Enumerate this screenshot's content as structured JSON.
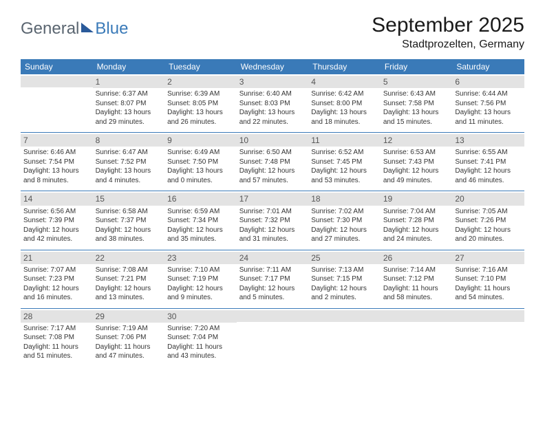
{
  "colors": {
    "header_bg": "#3a7ab8",
    "header_text": "#ffffff",
    "daynum_bg": "#e3e3e3",
    "daynum_text": "#555555",
    "cell_text": "#333333",
    "divider": "#3a7ab8",
    "logo_gray": "#5a6570",
    "logo_blue": "#3a7ab8",
    "logo_tri": "#2a5a9a",
    "page_bg": "#ffffff"
  },
  "logo": {
    "part1": "General",
    "part2": "Blue"
  },
  "title": "September 2025",
  "subtitle": "Stadtprozelten, Germany",
  "weekdays": [
    "Sunday",
    "Monday",
    "Tuesday",
    "Wednesday",
    "Thursday",
    "Friday",
    "Saturday"
  ],
  "font": {
    "family": "Arial",
    "title_size": 30,
    "subtitle_size": 16,
    "th_size": 12,
    "cell_size": 10,
    "daynum_size": 12
  },
  "weeks": [
    [
      null,
      {
        "n": "1",
        "sunrise": "Sunrise: 6:37 AM",
        "sunset": "Sunset: 8:07 PM",
        "daylight": "Daylight: 13 hours and 29 minutes."
      },
      {
        "n": "2",
        "sunrise": "Sunrise: 6:39 AM",
        "sunset": "Sunset: 8:05 PM",
        "daylight": "Daylight: 13 hours and 26 minutes."
      },
      {
        "n": "3",
        "sunrise": "Sunrise: 6:40 AM",
        "sunset": "Sunset: 8:03 PM",
        "daylight": "Daylight: 13 hours and 22 minutes."
      },
      {
        "n": "4",
        "sunrise": "Sunrise: 6:42 AM",
        "sunset": "Sunset: 8:00 PM",
        "daylight": "Daylight: 13 hours and 18 minutes."
      },
      {
        "n": "5",
        "sunrise": "Sunrise: 6:43 AM",
        "sunset": "Sunset: 7:58 PM",
        "daylight": "Daylight: 13 hours and 15 minutes."
      },
      {
        "n": "6",
        "sunrise": "Sunrise: 6:44 AM",
        "sunset": "Sunset: 7:56 PM",
        "daylight": "Daylight: 13 hours and 11 minutes."
      }
    ],
    [
      {
        "n": "7",
        "sunrise": "Sunrise: 6:46 AM",
        "sunset": "Sunset: 7:54 PM",
        "daylight": "Daylight: 13 hours and 8 minutes."
      },
      {
        "n": "8",
        "sunrise": "Sunrise: 6:47 AM",
        "sunset": "Sunset: 7:52 PM",
        "daylight": "Daylight: 13 hours and 4 minutes."
      },
      {
        "n": "9",
        "sunrise": "Sunrise: 6:49 AM",
        "sunset": "Sunset: 7:50 PM",
        "daylight": "Daylight: 13 hours and 0 minutes."
      },
      {
        "n": "10",
        "sunrise": "Sunrise: 6:50 AM",
        "sunset": "Sunset: 7:48 PM",
        "daylight": "Daylight: 12 hours and 57 minutes."
      },
      {
        "n": "11",
        "sunrise": "Sunrise: 6:52 AM",
        "sunset": "Sunset: 7:45 PM",
        "daylight": "Daylight: 12 hours and 53 minutes."
      },
      {
        "n": "12",
        "sunrise": "Sunrise: 6:53 AM",
        "sunset": "Sunset: 7:43 PM",
        "daylight": "Daylight: 12 hours and 49 minutes."
      },
      {
        "n": "13",
        "sunrise": "Sunrise: 6:55 AM",
        "sunset": "Sunset: 7:41 PM",
        "daylight": "Daylight: 12 hours and 46 minutes."
      }
    ],
    [
      {
        "n": "14",
        "sunrise": "Sunrise: 6:56 AM",
        "sunset": "Sunset: 7:39 PM",
        "daylight": "Daylight: 12 hours and 42 minutes."
      },
      {
        "n": "15",
        "sunrise": "Sunrise: 6:58 AM",
        "sunset": "Sunset: 7:37 PM",
        "daylight": "Daylight: 12 hours and 38 minutes."
      },
      {
        "n": "16",
        "sunrise": "Sunrise: 6:59 AM",
        "sunset": "Sunset: 7:34 PM",
        "daylight": "Daylight: 12 hours and 35 minutes."
      },
      {
        "n": "17",
        "sunrise": "Sunrise: 7:01 AM",
        "sunset": "Sunset: 7:32 PM",
        "daylight": "Daylight: 12 hours and 31 minutes."
      },
      {
        "n": "18",
        "sunrise": "Sunrise: 7:02 AM",
        "sunset": "Sunset: 7:30 PM",
        "daylight": "Daylight: 12 hours and 27 minutes."
      },
      {
        "n": "19",
        "sunrise": "Sunrise: 7:04 AM",
        "sunset": "Sunset: 7:28 PM",
        "daylight": "Daylight: 12 hours and 24 minutes."
      },
      {
        "n": "20",
        "sunrise": "Sunrise: 7:05 AM",
        "sunset": "Sunset: 7:26 PM",
        "daylight": "Daylight: 12 hours and 20 minutes."
      }
    ],
    [
      {
        "n": "21",
        "sunrise": "Sunrise: 7:07 AM",
        "sunset": "Sunset: 7:23 PM",
        "daylight": "Daylight: 12 hours and 16 minutes."
      },
      {
        "n": "22",
        "sunrise": "Sunrise: 7:08 AM",
        "sunset": "Sunset: 7:21 PM",
        "daylight": "Daylight: 12 hours and 13 minutes."
      },
      {
        "n": "23",
        "sunrise": "Sunrise: 7:10 AM",
        "sunset": "Sunset: 7:19 PM",
        "daylight": "Daylight: 12 hours and 9 minutes."
      },
      {
        "n": "24",
        "sunrise": "Sunrise: 7:11 AM",
        "sunset": "Sunset: 7:17 PM",
        "daylight": "Daylight: 12 hours and 5 minutes."
      },
      {
        "n": "25",
        "sunrise": "Sunrise: 7:13 AM",
        "sunset": "Sunset: 7:15 PM",
        "daylight": "Daylight: 12 hours and 2 minutes."
      },
      {
        "n": "26",
        "sunrise": "Sunrise: 7:14 AM",
        "sunset": "Sunset: 7:12 PM",
        "daylight": "Daylight: 11 hours and 58 minutes."
      },
      {
        "n": "27",
        "sunrise": "Sunrise: 7:16 AM",
        "sunset": "Sunset: 7:10 PM",
        "daylight": "Daylight: 11 hours and 54 minutes."
      }
    ],
    [
      {
        "n": "28",
        "sunrise": "Sunrise: 7:17 AM",
        "sunset": "Sunset: 7:08 PM",
        "daylight": "Daylight: 11 hours and 51 minutes."
      },
      {
        "n": "29",
        "sunrise": "Sunrise: 7:19 AM",
        "sunset": "Sunset: 7:06 PM",
        "daylight": "Daylight: 11 hours and 47 minutes."
      },
      {
        "n": "30",
        "sunrise": "Sunrise: 7:20 AM",
        "sunset": "Sunset: 7:04 PM",
        "daylight": "Daylight: 11 hours and 43 minutes."
      },
      null,
      null,
      null,
      null
    ]
  ]
}
